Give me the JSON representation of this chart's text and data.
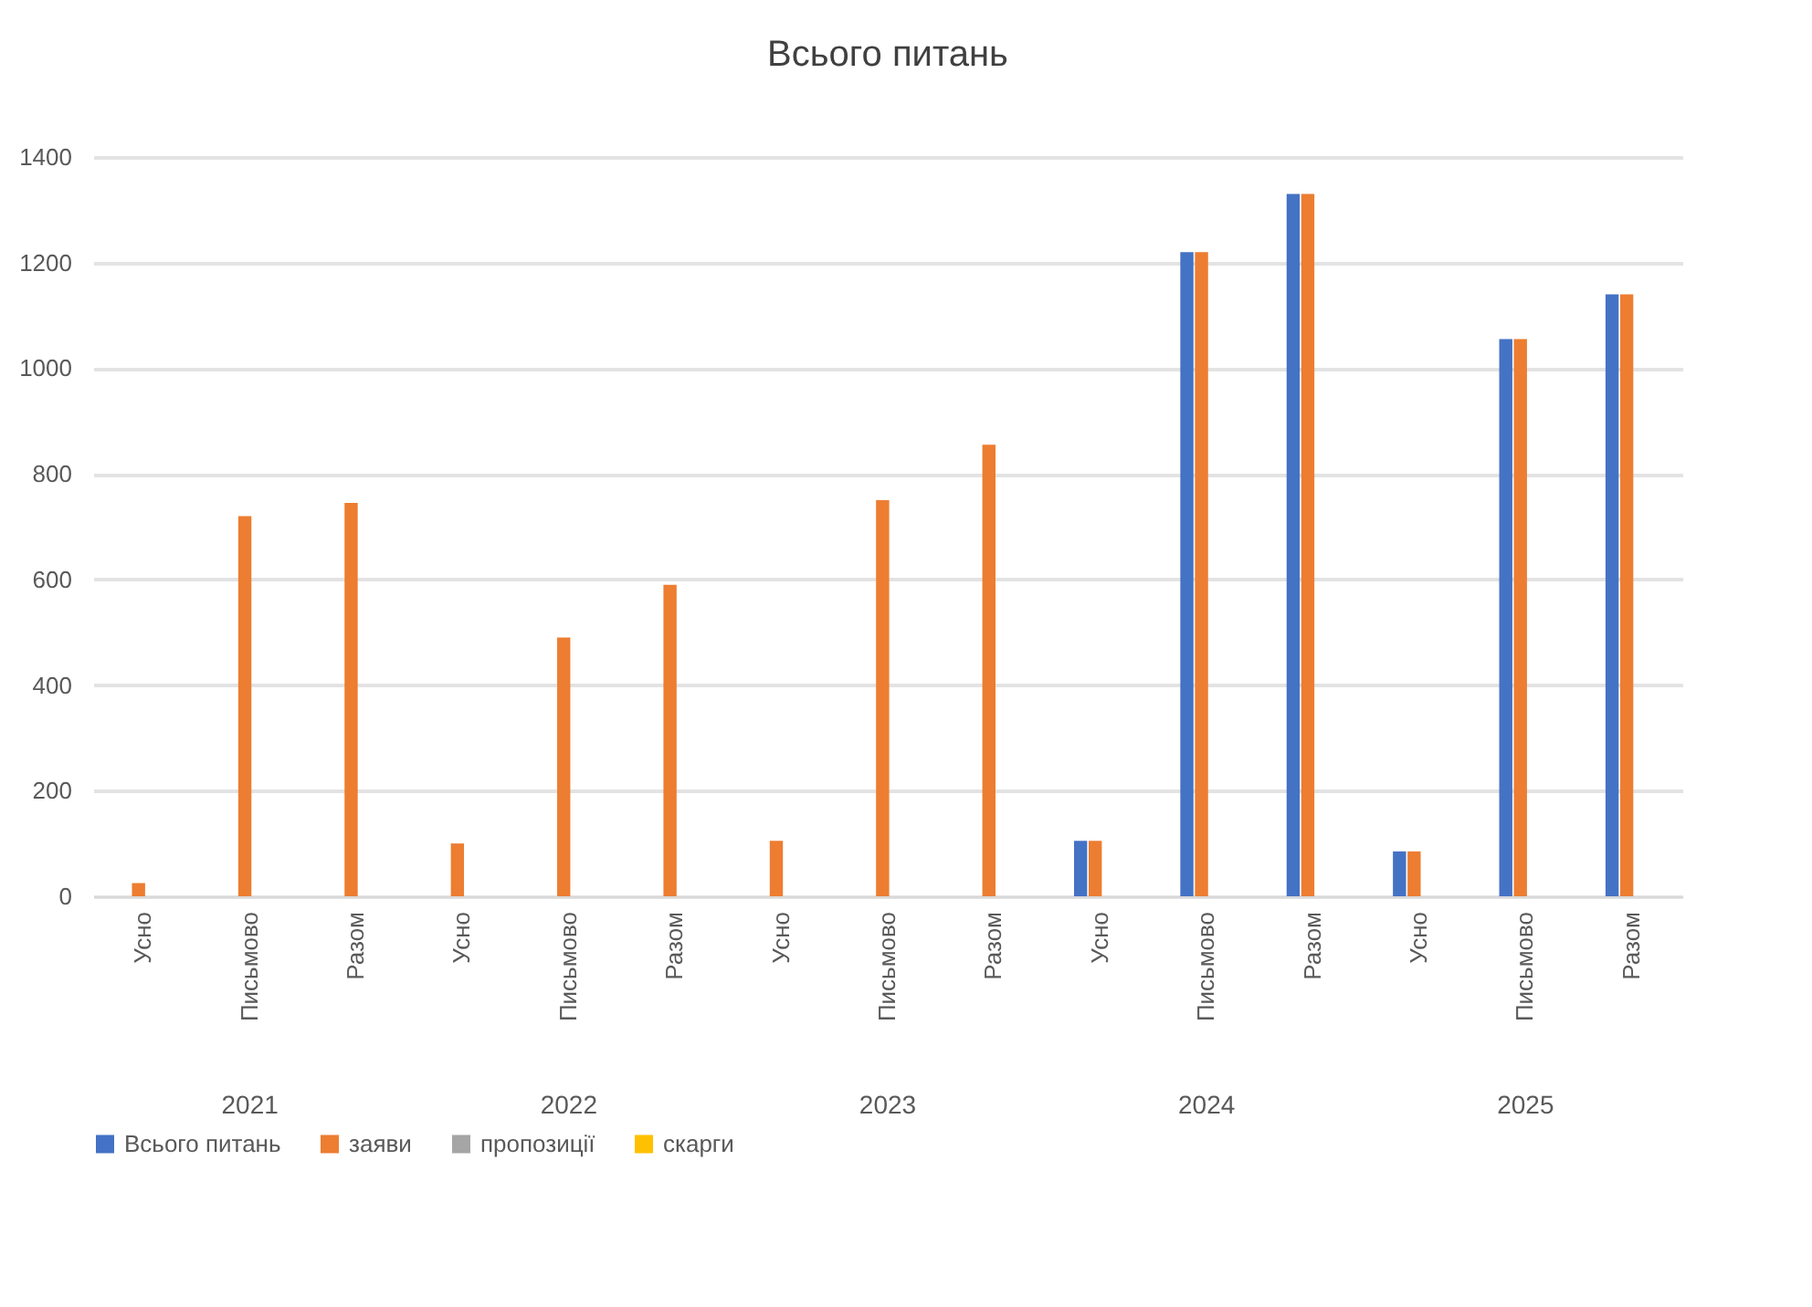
{
  "chart_data": {
    "type": "bar",
    "title": "Всього питань",
    "categories": [
      "Усно",
      "Письмово",
      "Разом",
      "Усно",
      "Письмово",
      "Разом",
      "Усно",
      "Письмово",
      "Разом",
      "Усно",
      "Письмово",
      "Разом",
      "Усно",
      "Письмово",
      "Разом"
    ],
    "series": [
      {
        "name": "Всього питань",
        "color": "#4472c4",
        "values": [
          0,
          0,
          0,
          0,
          0,
          0,
          0,
          0,
          0,
          105,
          1220,
          1330,
          85,
          1055,
          1140
        ]
      },
      {
        "name": "заяви",
        "color": "#ed7d31",
        "values": [
          25,
          720,
          745,
          100,
          490,
          590,
          105,
          750,
          855,
          105,
          1220,
          1330,
          85,
          1055,
          1140
        ]
      },
      {
        "name": "пропозиції",
        "color": "#a5a5a5",
        "values": [
          0,
          0,
          0,
          0,
          0,
          0,
          0,
          0,
          0,
          0,
          0,
          0,
          0,
          0,
          0
        ]
      },
      {
        "name": "скарги",
        "color": "#ffc000",
        "values": [
          0,
          0,
          0,
          0,
          0,
          0,
          0,
          0,
          0,
          0,
          0,
          0,
          0,
          0,
          0
        ]
      }
    ],
    "annotations": [
      "2021",
      "2022",
      "2023",
      "2024",
      "2025"
    ],
    "ylim": [
      0,
      1400
    ],
    "yticks": [
      0,
      200,
      400,
      600,
      800,
      1000,
      1200,
      1400
    ],
    "grid": "y",
    "legend": "bottom"
  }
}
